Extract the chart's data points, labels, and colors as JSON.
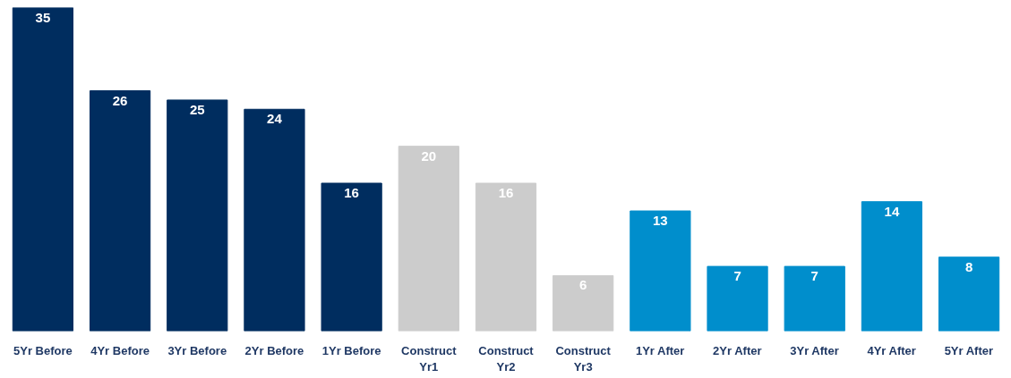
{
  "chart_data": {
    "type": "bar",
    "categories": [
      "5Yr Before",
      "4Yr Before",
      "3Yr Before",
      "2Yr Before",
      "1Yr Before",
      "Construct Yr1",
      "Construct Yr2",
      "Construct Yr3",
      "1Yr After",
      "2Yr After",
      "3Yr After",
      "4Yr After",
      "5Yr After"
    ],
    "values": [
      35,
      26,
      25,
      24,
      16,
      20,
      16,
      6,
      13,
      7,
      7,
      14,
      8
    ],
    "colors": [
      "#002d5f",
      "#002d5f",
      "#002d5f",
      "#002d5f",
      "#002d5f",
      "#cccccc",
      "#cccccc",
      "#cccccc",
      "#008ecc",
      "#008ecc",
      "#008ecc",
      "#008ecc",
      "#008ecc"
    ],
    "data_labels": true
  }
}
